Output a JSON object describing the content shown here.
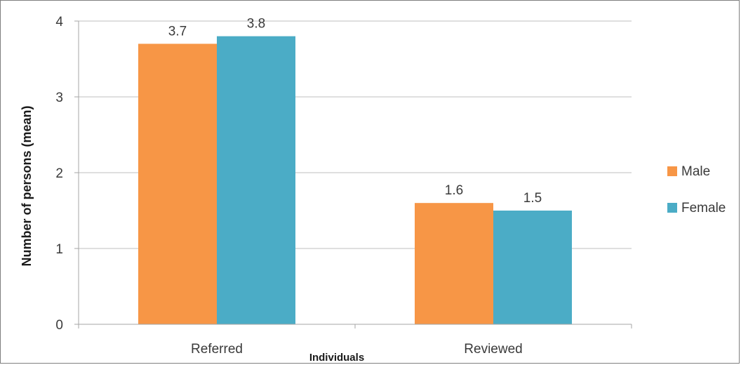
{
  "chart_data": {
    "type": "bar",
    "categories": [
      "Referred",
      "Reviewed"
    ],
    "series": [
      {
        "name": "Male",
        "values": [
          3.7,
          1.6
        ],
        "labels": [
          "3.7",
          "1.6"
        ],
        "color": "#f79646"
      },
      {
        "name": "Female",
        "values": [
          3.8,
          1.5
        ],
        "labels": [
          "3.8",
          "1.5"
        ],
        "color": "#4bacc6"
      }
    ],
    "xlabel": "Individuals",
    "ylabel": "Number of persons (mean)",
    "ylim": [
      0,
      4
    ],
    "yticks": [
      "0",
      "1",
      "2",
      "3",
      "4"
    ],
    "grid": true,
    "legend_position": "right",
    "gridline_color": "#bfbfbf",
    "axis_color": "#a6a6a6"
  }
}
